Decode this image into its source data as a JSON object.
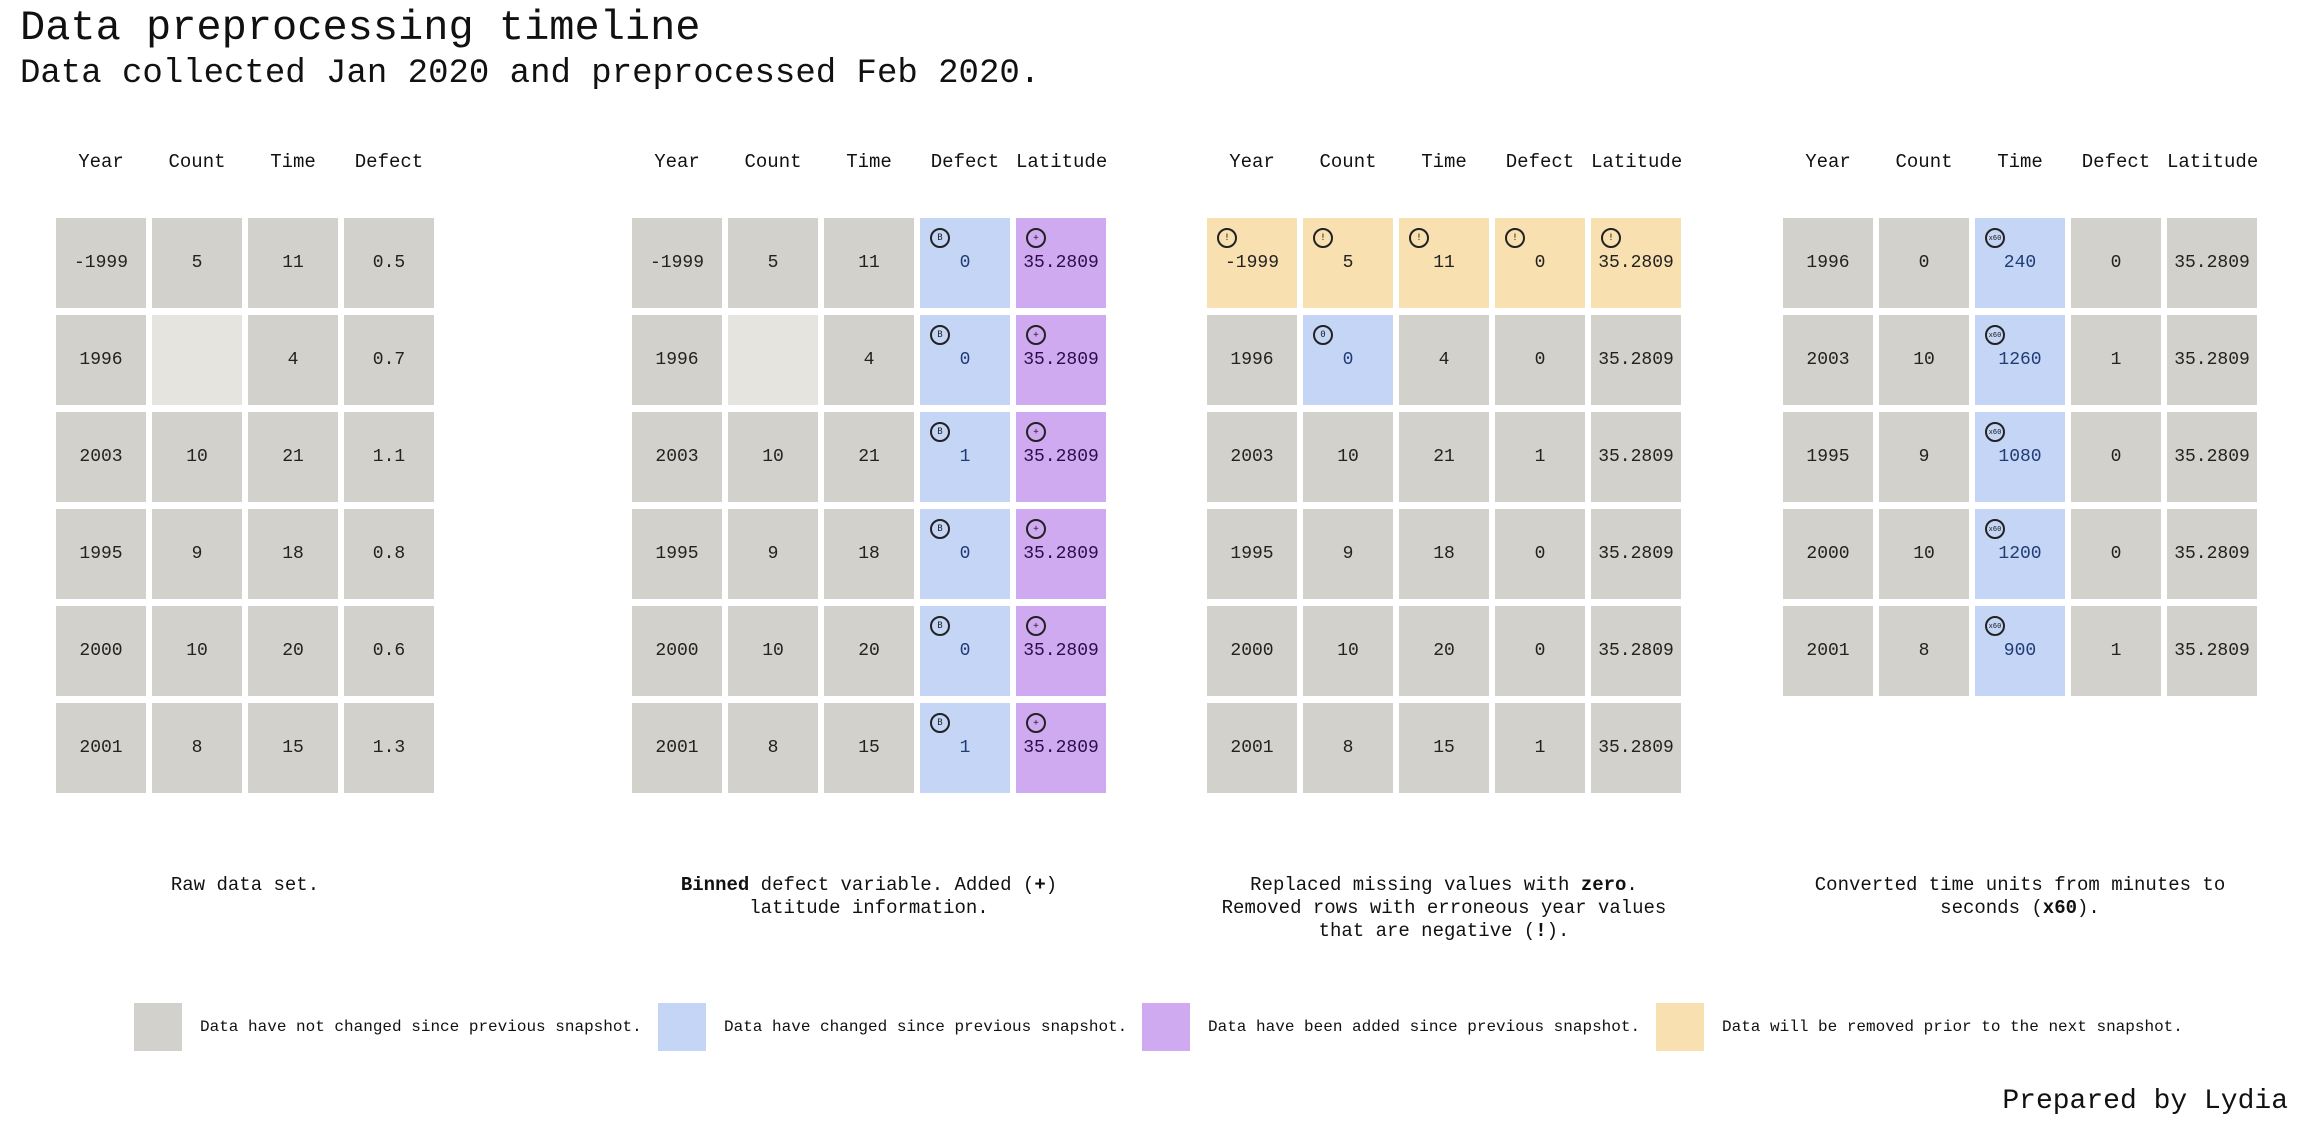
{
  "title": "Data preprocessing timeline",
  "subtitle": "Data collected Jan 2020 and preprocessed Feb 2020.",
  "footer": "Prepared by Lydia",
  "colors": {
    "unchanged": "#d2d1cc",
    "changed": "#c5d5f5",
    "added": "#cfaaf0",
    "removed": "#f8e0b0",
    "empty": "#e5e4df"
  },
  "marker_icons": {
    "bin": "bin-marker-icon",
    "plus": "plus-marker-icon",
    "warning": "exclamation-marker-icon",
    "zero": "zero-marker-icon",
    "x60": "times-sixty-marker-icon"
  },
  "panels": [
    {
      "columns": [
        "Year",
        "Count",
        "Time",
        "Defect"
      ],
      "rows": [
        [
          {
            "v": "-1999"
          },
          {
            "v": "5"
          },
          {
            "v": "11"
          },
          {
            "v": "0.5"
          }
        ],
        [
          {
            "v": "1996"
          },
          {
            "v": "",
            "s": "empty"
          },
          {
            "v": "4"
          },
          {
            "v": "0.7"
          }
        ],
        [
          {
            "v": "2003"
          },
          {
            "v": "10"
          },
          {
            "v": "21"
          },
          {
            "v": "1.1"
          }
        ],
        [
          {
            "v": "1995"
          },
          {
            "v": "9"
          },
          {
            "v": "18"
          },
          {
            "v": "0.8"
          }
        ],
        [
          {
            "v": "2000"
          },
          {
            "v": "10"
          },
          {
            "v": "20"
          },
          {
            "v": "0.6"
          }
        ],
        [
          {
            "v": "2001"
          },
          {
            "v": "8"
          },
          {
            "v": "15"
          },
          {
            "v": "1.3"
          }
        ]
      ],
      "caption": [
        {
          "t": "Raw data set."
        }
      ]
    },
    {
      "columns": [
        "Year",
        "Count",
        "Time",
        "Defect",
        "Latitude"
      ],
      "rows": [
        [
          {
            "v": "-1999"
          },
          {
            "v": "5"
          },
          {
            "v": "11"
          },
          {
            "v": "0",
            "s": "changed",
            "m": "B"
          },
          {
            "v": "35.2809",
            "s": "added",
            "m": "+"
          }
        ],
        [
          {
            "v": "1996"
          },
          {
            "v": "",
            "s": "empty"
          },
          {
            "v": "4"
          },
          {
            "v": "0",
            "s": "changed",
            "m": "B"
          },
          {
            "v": "35.2809",
            "s": "added",
            "m": "+"
          }
        ],
        [
          {
            "v": "2003"
          },
          {
            "v": "10"
          },
          {
            "v": "21"
          },
          {
            "v": "1",
            "s": "changed",
            "m": "B"
          },
          {
            "v": "35.2809",
            "s": "added",
            "m": "+"
          }
        ],
        [
          {
            "v": "1995"
          },
          {
            "v": "9"
          },
          {
            "v": "18"
          },
          {
            "v": "0",
            "s": "changed",
            "m": "B"
          },
          {
            "v": "35.2809",
            "s": "added",
            "m": "+"
          }
        ],
        [
          {
            "v": "2000"
          },
          {
            "v": "10"
          },
          {
            "v": "20"
          },
          {
            "v": "0",
            "s": "changed",
            "m": "B"
          },
          {
            "v": "35.2809",
            "s": "added",
            "m": "+"
          }
        ],
        [
          {
            "v": "2001"
          },
          {
            "v": "8"
          },
          {
            "v": "15"
          },
          {
            "v": "1",
            "s": "changed",
            "m": "B"
          },
          {
            "v": "35.2809",
            "s": "added",
            "m": "+"
          }
        ]
      ],
      "caption": [
        {
          "t": "Binned",
          "b": true
        },
        {
          "t": " defect variable. Added ("
        },
        {
          "t": "+",
          "b": true
        },
        {
          "t": ")\nlatitude information."
        }
      ]
    },
    {
      "columns": [
        "Year",
        "Count",
        "Time",
        "Defect",
        "Latitude"
      ],
      "rows": [
        [
          {
            "v": "-1999",
            "s": "removed",
            "m": "!"
          },
          {
            "v": "5",
            "s": "removed",
            "m": "!"
          },
          {
            "v": "11",
            "s": "removed",
            "m": "!"
          },
          {
            "v": "0",
            "s": "removed",
            "m": "!"
          },
          {
            "v": "35.2809",
            "s": "removed",
            "m": "!"
          }
        ],
        [
          {
            "v": "1996"
          },
          {
            "v": "0",
            "s": "changed",
            "m": "Z"
          },
          {
            "v": "4"
          },
          {
            "v": "0"
          },
          {
            "v": "35.2809"
          }
        ],
        [
          {
            "v": "2003"
          },
          {
            "v": "10"
          },
          {
            "v": "21"
          },
          {
            "v": "1"
          },
          {
            "v": "35.2809"
          }
        ],
        [
          {
            "v": "1995"
          },
          {
            "v": "9"
          },
          {
            "v": "18"
          },
          {
            "v": "0"
          },
          {
            "v": "35.2809"
          }
        ],
        [
          {
            "v": "2000"
          },
          {
            "v": "10"
          },
          {
            "v": "20"
          },
          {
            "v": "0"
          },
          {
            "v": "35.2809"
          }
        ],
        [
          {
            "v": "2001"
          },
          {
            "v": "8"
          },
          {
            "v": "15"
          },
          {
            "v": "1"
          },
          {
            "v": "35.2809"
          }
        ]
      ],
      "caption": [
        {
          "t": "Replaced missing values with "
        },
        {
          "t": "zero",
          "b": true
        },
        {
          "t": ".\nRemoved rows with erroneous year values\nthat are negative ("
        },
        {
          "t": "!",
          "b": true
        },
        {
          "t": ")."
        }
      ]
    },
    {
      "columns": [
        "Year",
        "Count",
        "Time",
        "Defect",
        "Latitude"
      ],
      "rows": [
        [
          {
            "v": "1996"
          },
          {
            "v": "0"
          },
          {
            "v": "240",
            "s": "changed",
            "m": "x60"
          },
          {
            "v": "0"
          },
          {
            "v": "35.2809"
          }
        ],
        [
          {
            "v": "2003"
          },
          {
            "v": "10"
          },
          {
            "v": "1260",
            "s": "changed",
            "m": "x60"
          },
          {
            "v": "1"
          },
          {
            "v": "35.2809"
          }
        ],
        [
          {
            "v": "1995"
          },
          {
            "v": "9"
          },
          {
            "v": "1080",
            "s": "changed",
            "m": "x60"
          },
          {
            "v": "0"
          },
          {
            "v": "35.2809"
          }
        ],
        [
          {
            "v": "2000"
          },
          {
            "v": "10"
          },
          {
            "v": "1200",
            "s": "changed",
            "m": "x60"
          },
          {
            "v": "0"
          },
          {
            "v": "35.2809"
          }
        ],
        [
          {
            "v": "2001"
          },
          {
            "v": "8"
          },
          {
            "v": "900",
            "s": "changed",
            "m": "x60"
          },
          {
            "v": "1"
          },
          {
            "v": "35.2809"
          }
        ]
      ],
      "caption": [
        {
          "t": "Converted time units from minutes to\nseconds ("
        },
        {
          "t": "x60",
          "b": true
        },
        {
          "t": ")."
        }
      ]
    }
  ],
  "legend": [
    {
      "key": "unchanged",
      "label": "Data have not changed since previous snapshot."
    },
    {
      "key": "changed",
      "label": "Data have changed since previous snapshot."
    },
    {
      "key": "added",
      "label": "Data have been added since previous snapshot."
    },
    {
      "key": "removed",
      "label": "Data will be removed prior to the next snapshot."
    }
  ]
}
